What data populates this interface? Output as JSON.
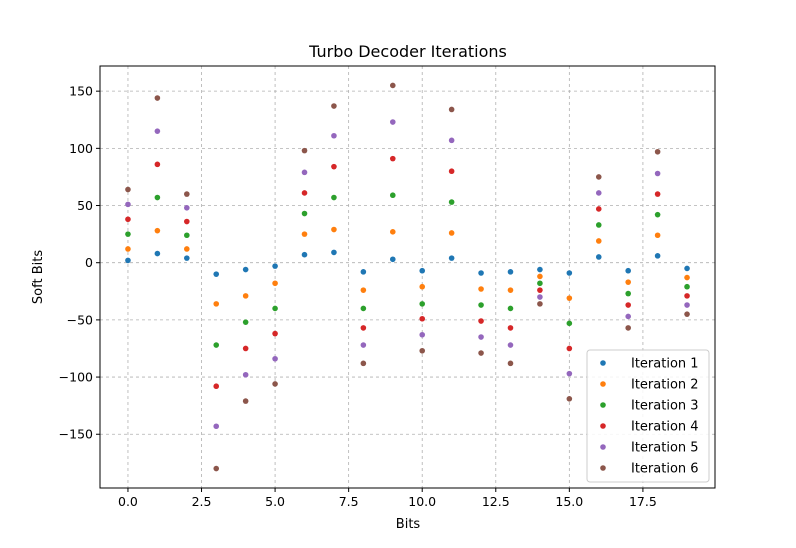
{
  "chart_data": {
    "type": "scatter",
    "title": "Turbo Decoder Iterations",
    "xlabel": "Bits",
    "ylabel": "Soft Bits",
    "xlim": [
      -0.95,
      19.95
    ],
    "ylim": [
      -197,
      172
    ],
    "xticks": [
      0.0,
      2.5,
      5.0,
      7.5,
      10.0,
      12.5,
      15.0,
      17.5
    ],
    "xtick_labels": [
      "0.0",
      "2.5",
      "5.0",
      "7.5",
      "10.0",
      "12.5",
      "15.0",
      "17.5"
    ],
    "yticks": [
      -150,
      -100,
      -50,
      0,
      50,
      100,
      150
    ],
    "ytick_labels": [
      "−150",
      "−100",
      "−50",
      "0",
      "50",
      "100",
      "150"
    ],
    "grid": true,
    "legend_position": "bottom-right",
    "x": [
      0,
      1,
      2,
      3,
      4,
      5,
      6,
      7,
      8,
      9,
      10,
      11,
      12,
      13,
      14,
      15,
      16,
      17,
      18,
      19
    ],
    "series": [
      {
        "name": "Iteration 1",
        "color": "#1f77b4",
        "values": [
          2,
          8,
          4,
          -10,
          -6,
          -3,
          7,
          9,
          -8,
          3,
          -7,
          4,
          -9,
          -8,
          -6,
          -9,
          5,
          -7,
          6,
          -5
        ]
      },
      {
        "name": "Iteration 2",
        "color": "#ff7f0e",
        "values": [
          12,
          28,
          12,
          -36,
          -29,
          -18,
          25,
          29,
          -24,
          27,
          -21,
          26,
          -23,
          -24,
          -12,
          -31,
          19,
          -17,
          24,
          -13
        ]
      },
      {
        "name": "Iteration 3",
        "color": "#2ca02c",
        "values": [
          25,
          57,
          24,
          -72,
          -52,
          -40,
          43,
          57,
          -40,
          59,
          -36,
          53,
          -37,
          -40,
          -18,
          -53,
          33,
          -27,
          42,
          -21
        ]
      },
      {
        "name": "Iteration 4",
        "color": "#d62728",
        "values": [
          38,
          86,
          36,
          -108,
          -75,
          -62,
          61,
          84,
          -57,
          91,
          -49,
          80,
          -51,
          -57,
          -24,
          -75,
          47,
          -37,
          60,
          -29
        ]
      },
      {
        "name": "Iteration 5",
        "color": "#9467bd",
        "values": [
          51,
          115,
          48,
          -143,
          -98,
          -84,
          79,
          111,
          -72,
          123,
          -63,
          107,
          -65,
          -72,
          -30,
          -97,
          61,
          -47,
          78,
          -37
        ]
      },
      {
        "name": "Iteration 6",
        "color": "#8c564b",
        "values": [
          64,
          144,
          60,
          -180,
          -121,
          -106,
          98,
          137,
          -88,
          155,
          -77,
          134,
          -79,
          -88,
          -36,
          -119,
          75,
          -57,
          97,
          -45
        ]
      }
    ]
  }
}
